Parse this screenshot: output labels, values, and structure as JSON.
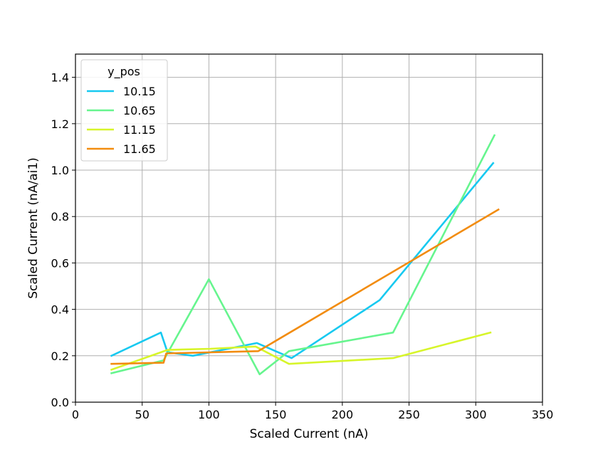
{
  "chart_data": {
    "type": "line",
    "title": "",
    "xlabel": "Scaled Current (nA)",
    "ylabel": "Scaled Current (nA/ai1)",
    "xlim": [
      0,
      350
    ],
    "ylim": [
      0,
      1.5
    ],
    "xticks": [
      0,
      50,
      100,
      150,
      200,
      250,
      300,
      350
    ],
    "yticks": [
      0.0,
      0.2,
      0.4,
      0.6,
      0.8,
      1.0,
      1.2,
      1.4
    ],
    "xtick_labels": [
      "0",
      "50",
      "100",
      "150",
      "200",
      "250",
      "300",
      "350"
    ],
    "ytick_labels": [
      "0.0",
      "0.2",
      "0.4",
      "0.6",
      "0.8",
      "1.0",
      "1.2",
      "1.4"
    ],
    "grid": true,
    "legend": {
      "title": "y_pos",
      "position": "top-left"
    },
    "series": [
      {
        "name": "10.15",
        "color": "#17c9f0",
        "x": [
          27,
          64,
          69,
          88,
          136,
          162,
          228,
          313
        ],
        "y": [
          0.2,
          0.3,
          0.215,
          0.2,
          0.255,
          0.19,
          0.44,
          1.03
        ]
      },
      {
        "name": "10.65",
        "color": "#66f58e",
        "x": [
          27,
          66,
          100,
          138,
          160,
          238,
          314
        ],
        "y": [
          0.125,
          0.18,
          0.53,
          0.12,
          0.22,
          0.3,
          1.15
        ]
      },
      {
        "name": "11.15",
        "color": "#d7f52a",
        "x": [
          27,
          69,
          101,
          135,
          160,
          238,
          311
        ],
        "y": [
          0.14,
          0.225,
          0.23,
          0.24,
          0.165,
          0.19,
          0.3
        ]
      },
      {
        "name": "11.65",
        "color": "#f28c0f",
        "x": [
          27,
          66,
          68,
          137,
          317
        ],
        "y": [
          0.165,
          0.17,
          0.21,
          0.22,
          0.83
        ]
      }
    ]
  }
}
